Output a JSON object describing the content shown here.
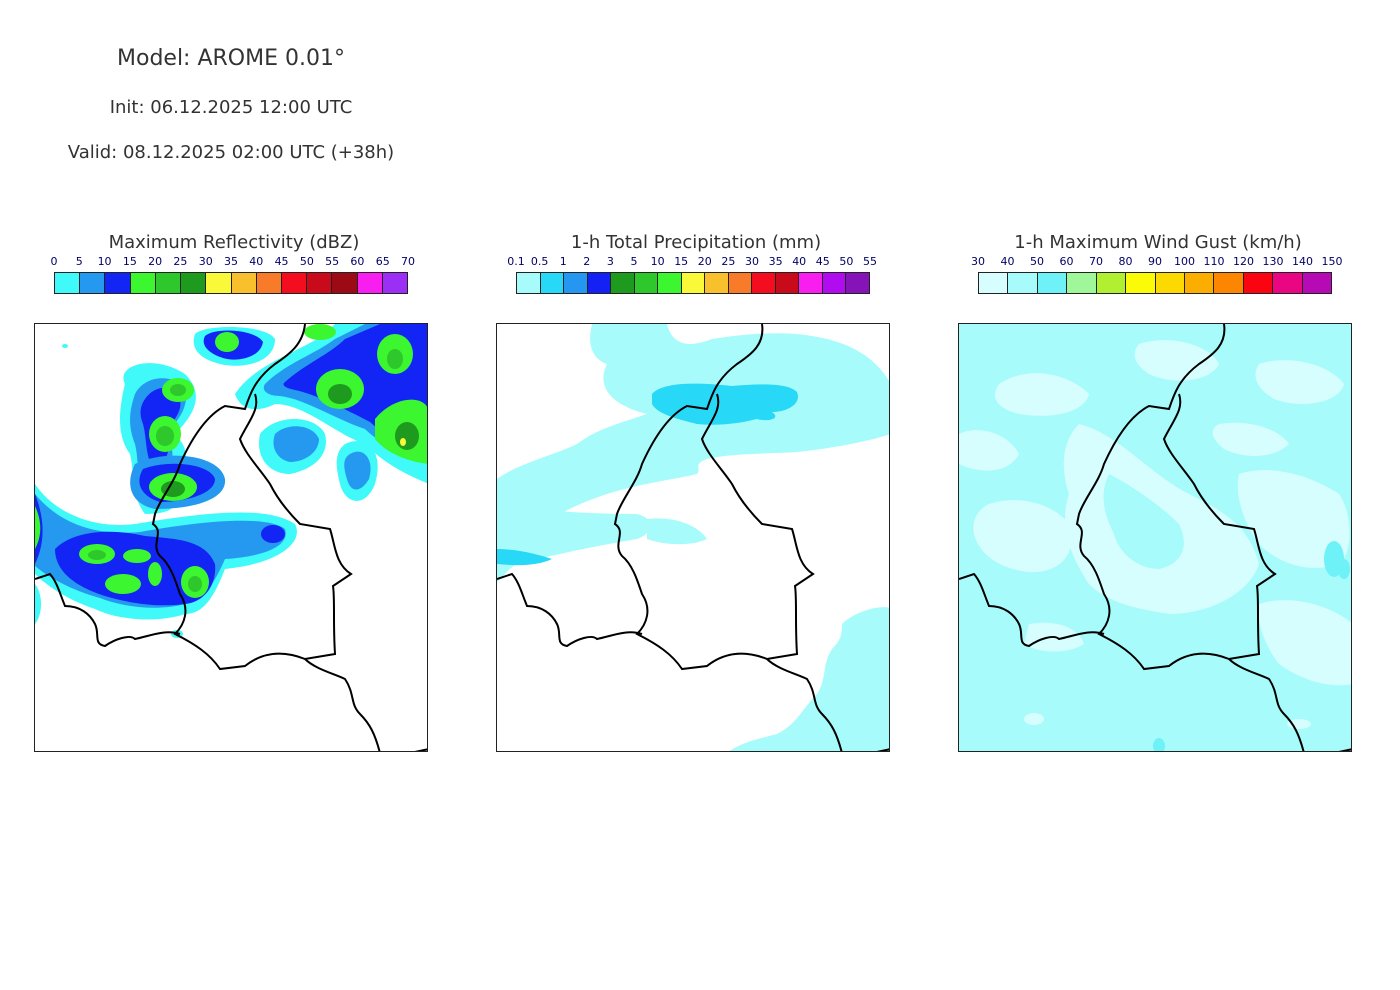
{
  "header": {
    "model": "Model: AROME 0.01°",
    "init": "Init: 06.12.2025 12:00 UTC",
    "valid": "Valid: 08.12.2025 02:00 UTC (+38h)"
  },
  "panels": [
    {
      "title": "Maximum Reflectivity (dBZ)",
      "ticks": [
        "0",
        "5",
        "10",
        "15",
        "20",
        "25",
        "30",
        "35",
        "40",
        "45",
        "50",
        "55",
        "60",
        "65",
        "70"
      ],
      "colors": [
        "#3ffaf8",
        "#2599f0",
        "#1225f5",
        "#3cf62f",
        "#2ec72c",
        "#1e9a1f",
        "#f9f93a",
        "#f9c02e",
        "#f77b28",
        "#f40d1f",
        "#c80a1b",
        "#9b0a15",
        "#f91ef0",
        "#9b2ff5"
      ]
    },
    {
      "title": "1-h Total Precipitation (mm)",
      "ticks": [
        "0.1",
        "0.5",
        "1",
        "2",
        "3",
        "5",
        "10",
        "15",
        "20",
        "25",
        "30",
        "35",
        "40",
        "45",
        "50",
        "55"
      ],
      "colors": [
        "#a8fbfb",
        "#28d8f7",
        "#2597f0",
        "#1321f5",
        "#1e9a1f",
        "#2ec72c",
        "#3cf62f",
        "#f9f93a",
        "#f9c02e",
        "#f77b28",
        "#f40d1f",
        "#c80a1b",
        "#f91ef0",
        "#b10cf0",
        "#8513b8"
      ]
    },
    {
      "title": "1-h Maximum Wind Gust (km/h)",
      "ticks": [
        "30",
        "40",
        "50",
        "60",
        "70",
        "80",
        "90",
        "100",
        "110",
        "120",
        "130",
        "140",
        "150"
      ],
      "colors": [
        "#d7fefe",
        "#a7fbfb",
        "#6ef2f8",
        "#9ff79a",
        "#b0f030",
        "#fbfb07",
        "#fcd900",
        "#fcae00",
        "#fc8600",
        "#fb0411",
        "#ea0583",
        "#b60ab4"
      ]
    }
  ],
  "map_legend": {
    "reflectivity_palette": [
      "#3ffaf8",
      "#2599f0",
      "#1225f5",
      "#3cf62f",
      "#2ec72c",
      "#1e9a1f",
      "#f9f93a"
    ],
    "precip_palette": [
      "#a8fbfb",
      "#28d8f7"
    ],
    "gust_palette": [
      "#a7fbfb",
      "#d7fefe",
      "#6ef2f8"
    ],
    "border_color": "#000000"
  }
}
